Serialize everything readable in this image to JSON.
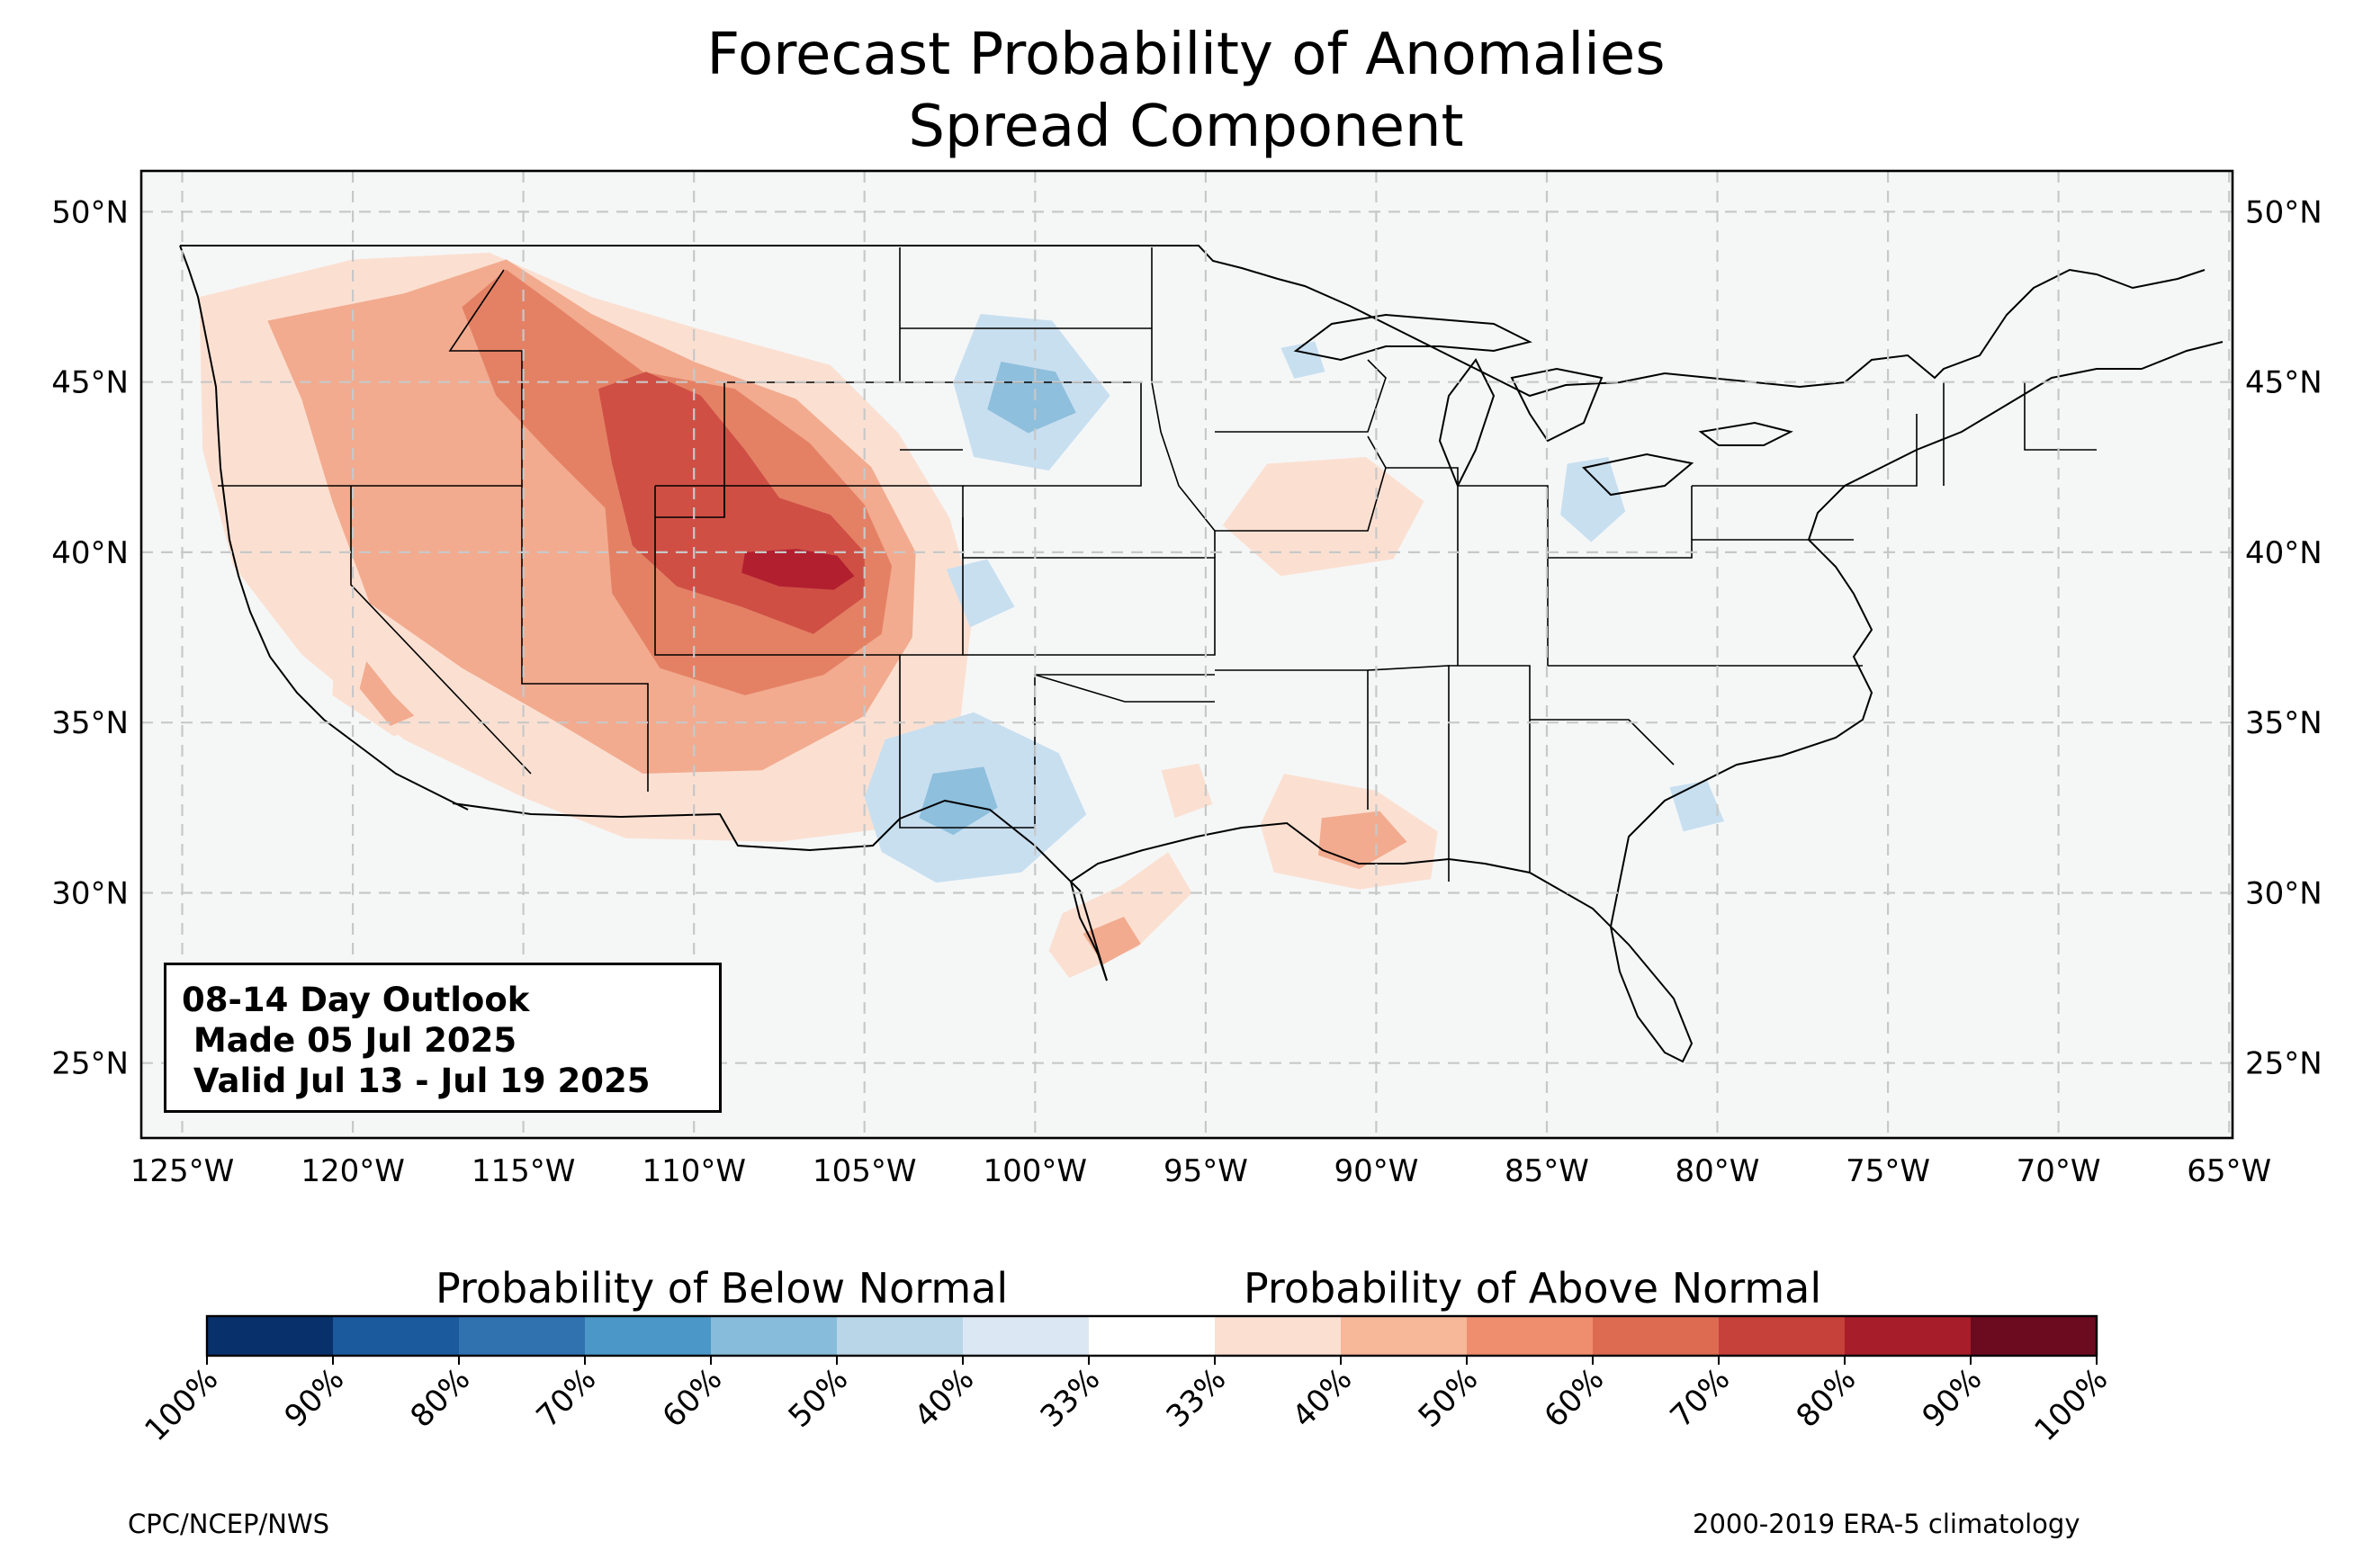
{
  "title": {
    "line1": "Forecast Probability of Anomalies",
    "line2": "Spread Component"
  },
  "map": {
    "extent": {
      "lon_min": -126.2,
      "lon_max": -64.9,
      "lat_min": 22.8,
      "lat_max": 51.2
    },
    "lon_ticks": [
      -125,
      -120,
      -115,
      -110,
      -105,
      -100,
      -95,
      -90,
      -85,
      -80,
      -75,
      -70,
      -65
    ],
    "lon_labels": [
      "125°W",
      "120°W",
      "115°W",
      "110°W",
      "105°W",
      "100°W",
      "95°W",
      "90°W",
      "85°W",
      "80°W",
      "75°W",
      "70°W",
      "65°W"
    ],
    "lat_ticks": [
      25,
      30,
      35,
      40,
      45,
      50
    ],
    "lat_labels": [
      "25°N",
      "30°N",
      "35°N",
      "40°N",
      "45°N",
      "50°N"
    ],
    "gridlines": true,
    "background_color": "#f5f7f7",
    "anomaly_regions": [
      {
        "side": "above",
        "level": 40,
        "pts": [
          [
            -124.5,
            47.5
          ],
          [
            -120,
            48.6
          ],
          [
            -116,
            48.8
          ],
          [
            -113,
            47.5
          ],
          [
            -110,
            46.6
          ],
          [
            -106,
            45.5
          ],
          [
            -104,
            43.5
          ],
          [
            -102.5,
            41
          ],
          [
            -101.8,
            38.5
          ],
          [
            -102.2,
            35
          ],
          [
            -103.5,
            32
          ],
          [
            -107.5,
            31.5
          ],
          [
            -112,
            31.6
          ],
          [
            -115,
            32.8
          ],
          [
            -118.5,
            34.5
          ],
          [
            -121.5,
            37
          ],
          [
            -123.5,
            39.6
          ],
          [
            -124.4,
            43
          ]
        ]
      },
      {
        "side": "above",
        "level": 50,
        "pts": [
          [
            -122.5,
            46.8
          ],
          [
            -118.5,
            47.6
          ],
          [
            -115.5,
            48.6
          ],
          [
            -113,
            47
          ],
          [
            -110,
            45.6
          ],
          [
            -107,
            44.5
          ],
          [
            -104.8,
            42.5
          ],
          [
            -103.5,
            40
          ],
          [
            -103.6,
            37.5
          ],
          [
            -105,
            35.2
          ],
          [
            -108,
            33.6
          ],
          [
            -111.5,
            33.5
          ],
          [
            -114,
            35
          ],
          [
            -116.8,
            36.6
          ],
          [
            -119.5,
            38.5
          ],
          [
            -120.6,
            41.5
          ],
          [
            -121.5,
            44.5
          ]
        ]
      },
      {
        "side": "above",
        "level": 60,
        "pts": [
          [
            -116.8,
            47.2
          ],
          [
            -115.5,
            48.3
          ],
          [
            -114,
            47.2
          ],
          [
            -111.5,
            45.3
          ],
          [
            -108.8,
            44.8
          ],
          [
            -106.6,
            43.2
          ],
          [
            -105,
            41.4
          ],
          [
            -104.2,
            39.6
          ],
          [
            -104.5,
            37.6
          ],
          [
            -106.2,
            36.4
          ],
          [
            -108.5,
            35.8
          ],
          [
            -111,
            36.6
          ],
          [
            -112.4,
            38.8
          ],
          [
            -112.6,
            41.3
          ],
          [
            -114.2,
            42.9
          ],
          [
            -115.8,
            44.6
          ]
        ]
      },
      {
        "side": "above",
        "level": 70,
        "pts": [
          [
            -112.8,
            44.8
          ],
          [
            -111.4,
            45.3
          ],
          [
            -109.8,
            44.6
          ],
          [
            -108.5,
            43
          ],
          [
            -107.5,
            41.6
          ],
          [
            -106,
            41.1
          ],
          [
            -105,
            40
          ],
          [
            -105,
            38.7
          ],
          [
            -106.5,
            37.6
          ],
          [
            -108.6,
            38.4
          ],
          [
            -110.5,
            39
          ],
          [
            -111.8,
            40.2
          ],
          [
            -112.4,
            42.6
          ]
        ]
      },
      {
        "side": "above",
        "level": 80,
        "pts": [
          [
            -108.5,
            40
          ],
          [
            -107,
            40.1
          ],
          [
            -105.8,
            39.9
          ],
          [
            -105.3,
            39.3
          ],
          [
            -105.9,
            38.9
          ],
          [
            -107.5,
            39
          ],
          [
            -108.6,
            39.4
          ]
        ]
      },
      {
        "side": "above",
        "level": 40,
        "pts": [
          [
            -120.5,
            37.5
          ],
          [
            -118.5,
            36.8
          ],
          [
            -117.5,
            35
          ],
          [
            -118.8,
            34.6
          ],
          [
            -120.6,
            35.8
          ]
        ]
      },
      {
        "side": "above",
        "level": 50,
        "pts": [
          [
            -119.6,
            36.8
          ],
          [
            -118.8,
            35.8
          ],
          [
            -118.2,
            35.2
          ],
          [
            -118.9,
            34.9
          ],
          [
            -119.8,
            36
          ]
        ]
      },
      {
        "side": "above",
        "level": 40,
        "pts": [
          [
            -93.2,
            42.6
          ],
          [
            -90.3,
            42.8
          ],
          [
            -88.6,
            41.5
          ],
          [
            -89.5,
            39.8
          ],
          [
            -92.8,
            39.3
          ],
          [
            -94.5,
            40.8
          ]
        ]
      },
      {
        "side": "above",
        "level": 40,
        "pts": [
          [
            -92.7,
            33.5
          ],
          [
            -90,
            33
          ],
          [
            -88.2,
            31.8
          ],
          [
            -88.4,
            30.4
          ],
          [
            -90.5,
            30.1
          ],
          [
            -93,
            30.6
          ],
          [
            -93.4,
            32
          ]
        ]
      },
      {
        "side": "above",
        "level": 50,
        "pts": [
          [
            -91.6,
            32.2
          ],
          [
            -89.9,
            32.4
          ],
          [
            -89.1,
            31.5
          ],
          [
            -90.5,
            30.7
          ],
          [
            -91.7,
            31.1
          ]
        ]
      },
      {
        "side": "above",
        "level": 40,
        "pts": [
          [
            -99.2,
            29.4
          ],
          [
            -97.5,
            30.2
          ],
          [
            -96.1,
            31.2
          ],
          [
            -95.4,
            30
          ],
          [
            -97,
            28.4
          ],
          [
            -99,
            27.5
          ],
          [
            -99.6,
            28.3
          ]
        ]
      },
      {
        "side": "above",
        "level": 50,
        "pts": [
          [
            -98.6,
            28.8
          ],
          [
            -97.4,
            29.3
          ],
          [
            -96.9,
            28.5
          ],
          [
            -98,
            27.9
          ]
        ]
      },
      {
        "side": "above",
        "level": 40,
        "pts": [
          [
            -96.3,
            33.6
          ],
          [
            -95.2,
            33.8
          ],
          [
            -94.8,
            32.6
          ],
          [
            -95.9,
            32.2
          ]
        ]
      },
      {
        "side": "below",
        "level": 40,
        "pts": [
          [
            -104.4,
            34.5
          ],
          [
            -101.8,
            35.3
          ],
          [
            -99.3,
            34.1
          ],
          [
            -98.5,
            32.3
          ],
          [
            -100.4,
            30.6
          ],
          [
            -102.9,
            30.3
          ],
          [
            -104.5,
            31.2
          ],
          [
            -105,
            32.8
          ]
        ]
      },
      {
        "side": "below",
        "level": 50,
        "pts": [
          [
            -103,
            33.5
          ],
          [
            -101.5,
            33.7
          ],
          [
            -101.1,
            32.5
          ],
          [
            -102.4,
            31.7
          ],
          [
            -103.4,
            32.2
          ]
        ]
      },
      {
        "side": "below",
        "level": 40,
        "pts": [
          [
            -101.6,
            47
          ],
          [
            -99.5,
            46.8
          ],
          [
            -97.8,
            44.6
          ],
          [
            -99.6,
            42.4
          ],
          [
            -101.8,
            42.8
          ],
          [
            -102.4,
            45
          ]
        ]
      },
      {
        "side": "below",
        "level": 50,
        "pts": [
          [
            -101,
            45.6
          ],
          [
            -99.4,
            45.3
          ],
          [
            -98.8,
            44.1
          ],
          [
            -100.2,
            43.5
          ],
          [
            -101.4,
            44.2
          ]
        ]
      },
      {
        "side": "below",
        "level": 40,
        "pts": [
          [
            -84.4,
            42.6
          ],
          [
            -83.2,
            42.8
          ],
          [
            -82.7,
            41.2
          ],
          [
            -83.7,
            40.3
          ],
          [
            -84.6,
            41.1
          ]
        ]
      },
      {
        "side": "below",
        "level": 40,
        "pts": [
          [
            -81.4,
            33.1
          ],
          [
            -80.3,
            33.3
          ],
          [
            -79.8,
            32.1
          ],
          [
            -81,
            31.8
          ]
        ]
      },
      {
        "side": "below",
        "level": 40,
        "pts": [
          [
            -102.6,
            39.5
          ],
          [
            -101.4,
            39.8
          ],
          [
            -100.6,
            38.4
          ],
          [
            -101.9,
            37.8
          ]
        ]
      },
      {
        "side": "below",
        "level": 40,
        "pts": [
          [
            -92.8,
            46
          ],
          [
            -91.8,
            46.2
          ],
          [
            -91.5,
            45.3
          ],
          [
            -92.4,
            45.1
          ]
        ]
      }
    ]
  },
  "colorbar": {
    "below_label": "Probability of Below Normal",
    "above_label": "Probability of Above Normal",
    "tick_labels": [
      "100%",
      "90%",
      "80%",
      "70%",
      "60%",
      "50%",
      "40%",
      "33%",
      "33%",
      "40%",
      "50%",
      "60%",
      "70%",
      "80%",
      "90%",
      "100%"
    ],
    "colors": [
      "#08306b",
      "#1c5a9e",
      "#3071b0",
      "#4b98c8",
      "#88bcdb",
      "#b9d6e9",
      "#dbe8f3",
      "#ffffff",
      "#fbe0d2",
      "#f7b799",
      "#ef8e6e",
      "#dc6b52",
      "#c6413a",
      "#a81d2a",
      "#6c0a1f"
    ]
  },
  "level_colors": {
    "above": {
      "40": "#fbe0d2",
      "50": "#f2ab8f",
      "60": "#e48165",
      "70": "#cf4f45",
      "80": "#b21f2f"
    },
    "below": {
      "40": "#c8dff0",
      "50": "#8ebfdd",
      "60": "#5c9fcc"
    }
  },
  "outlook": {
    "line1": "08-14 Day Outlook",
    "line2": " Made 05 Jul 2025",
    "line3": " Valid Jul 13 - Jul 19 2025"
  },
  "footer": {
    "left": "CPC/NCEP/NWS",
    "right": "2000-2019 ERA-5 climatology"
  }
}
